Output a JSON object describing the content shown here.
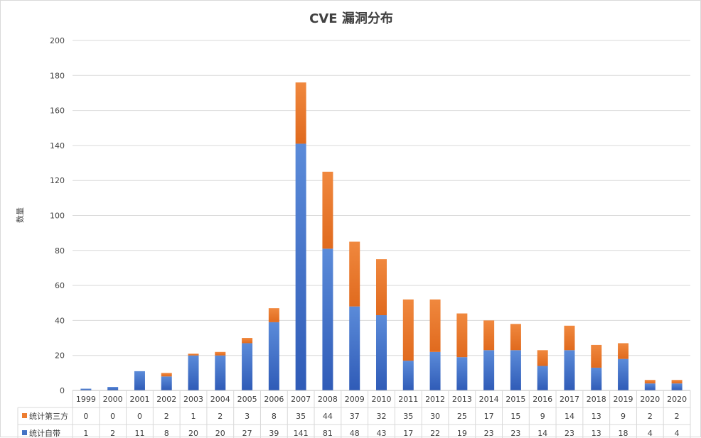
{
  "chart_data": {
    "type": "bar",
    "stacked": true,
    "title": "CVE 漏洞分布",
    "xlabel": "",
    "ylabel": "数量",
    "ylim": [
      0,
      200
    ],
    "yticks": [
      0,
      20,
      40,
      60,
      80,
      100,
      120,
      140,
      160,
      180,
      200
    ],
    "grid": true,
    "legend": "data-table-left",
    "categories": [
      "1999",
      "2000",
      "2001",
      "2002",
      "2003",
      "2004",
      "2005",
      "2006",
      "2007",
      "2008",
      "2009",
      "2010",
      "2011",
      "2012",
      "2013",
      "2014",
      "2015",
      "2016",
      "2017",
      "2018",
      "2019",
      "2020",
      "2020"
    ],
    "series": [
      {
        "name": "统计自带",
        "color": "#4472C4",
        "values": [
          1,
          2,
          11,
          8,
          20,
          20,
          27,
          39,
          141,
          81,
          48,
          43,
          17,
          22,
          19,
          23,
          23,
          14,
          23,
          13,
          18,
          4,
          4
        ]
      },
      {
        "name": "统计第三方",
        "color": "#ED7D31",
        "values": [
          0,
          0,
          0,
          2,
          1,
          2,
          3,
          8,
          35,
          44,
          37,
          32,
          35,
          30,
          25,
          17,
          15,
          9,
          14,
          13,
          9,
          2,
          2
        ]
      }
    ]
  }
}
